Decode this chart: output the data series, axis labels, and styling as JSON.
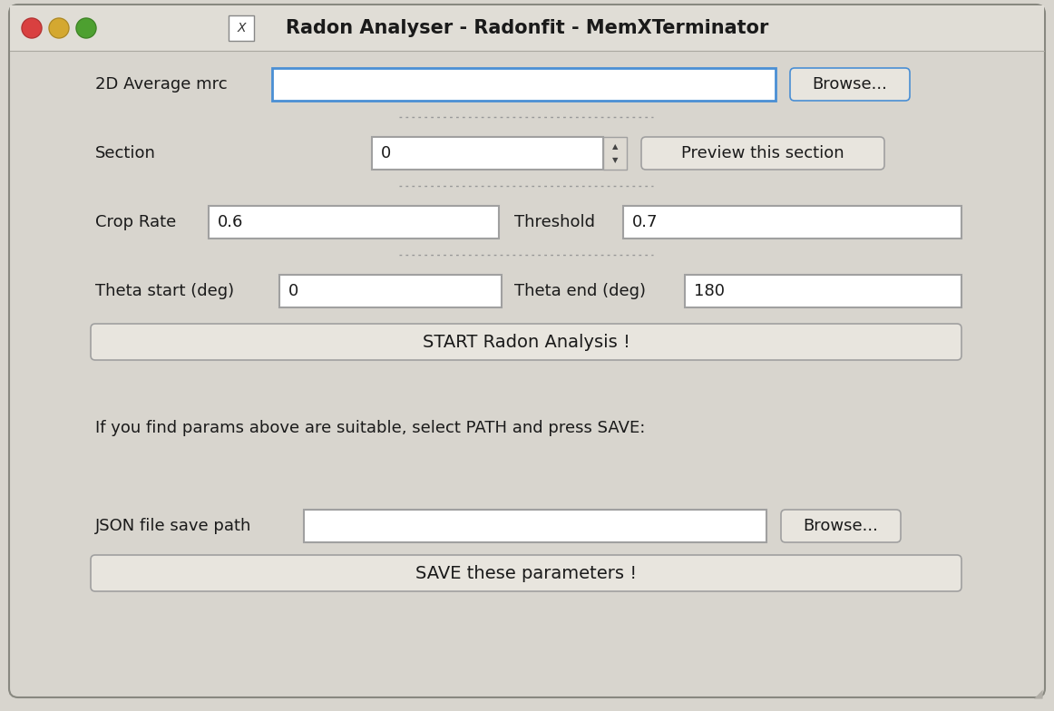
{
  "title": "Radon Analyser - Radonfit - MemXTerminator",
  "bg_color": "#d8d5ce",
  "window_bg": "#d8d5ce",
  "titlebar_bg": "#e2dfd8",
  "fields": {
    "avg_mrc_label": "2D Average mrc",
    "avg_mrc_value": "",
    "section_label": "Section",
    "section_value": "0",
    "crop_rate_label": "Crop Rate",
    "crop_rate_value": "0.6",
    "threshold_label": "Threshold",
    "threshold_value": "0.7",
    "theta_start_label": "Theta start (deg)",
    "theta_start_value": "0",
    "theta_end_label": "Theta end (deg)",
    "theta_end_value": "180",
    "json_path_label": "JSON file save path",
    "json_path_value": ""
  },
  "buttons": {
    "browse1": "Browse...",
    "preview": "Preview this section",
    "start": "START Radon Analysis !",
    "browse2": "Browse...",
    "save": "SAVE these parameters !"
  },
  "info_text": "If you find params above are suitable, select PATH and press SAVE:",
  "input_border_focused": "#4a8fd4",
  "input_border_normal": "#a0a0a0",
  "button_bg": "#e8e5de",
  "button_border": "#a0a0a0",
  "text_color": "#1a1a1a",
  "dot_color": "#999999",
  "traffic_red": "#d94040",
  "traffic_yellow": "#d4a830",
  "traffic_green": "#4da030",
  "outer_border": "#888880",
  "titlebar_bottom_border": "#aaa8a0"
}
